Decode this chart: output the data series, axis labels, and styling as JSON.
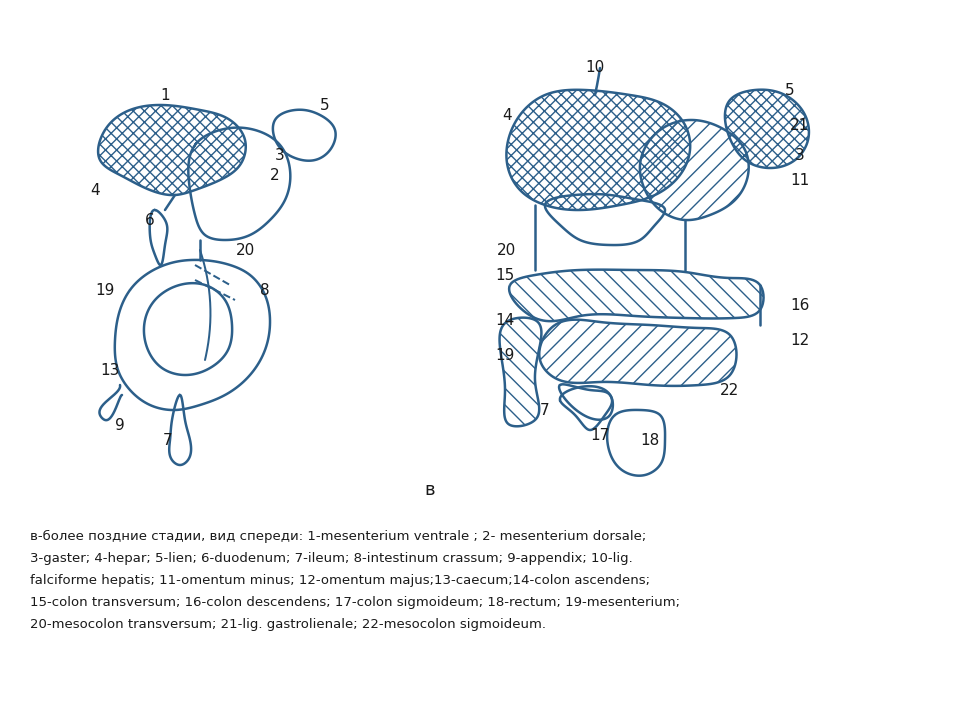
{
  "title_label": "в",
  "description_lines": [
    "в-более поздние стадии, вид спереди: 1-mesenterium ventrale ; 2- mesenterium dorsale;",
    "3-gaster; 4-hepar; 5-lien; 6-duodenum; 7-ileum; 8-intestinum crassum; 9-appendix; 10-lig.",
    "falciforme hepatis; 11-omentum minus; 12-omentum majus;13-caecum;14-colon ascendens;",
    "15-colon transversum; 16-colon descendens; 17-colon sigmoideum; 18-rectum; 19-mesenterium;",
    "20-mesocolon transversum; 21-lig. gastrolienale; 22-mesocolon sigmoideum."
  ],
  "line_color": "#2c5f8a",
  "hatch_color": "#2c5f8a",
  "bg_color": "#ffffff",
  "text_color": "#1a1a1a",
  "label_color": "#1a1a1a",
  "lw": 1.8
}
